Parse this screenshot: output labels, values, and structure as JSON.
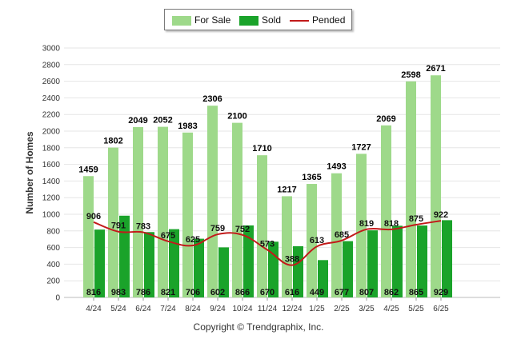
{
  "legend": {
    "for_sale": "For Sale",
    "sold": "Sold",
    "pended": "Pended"
  },
  "copyright": "Copyright © Trendgraphix, Inc.",
  "colors": {
    "for_sale": "#9ed98a",
    "sold": "#1aa32a",
    "pended": "#c21a1a",
    "grid": "#e6e6e6"
  },
  "chart_data": {
    "type": "bar",
    "title": "",
    "xlabel": "",
    "ylabel": "Number of Homes",
    "ylim": [
      0,
      3000
    ],
    "yticks": [
      0,
      200,
      400,
      600,
      800,
      1000,
      1200,
      1400,
      1600,
      1800,
      2000,
      2200,
      2400,
      2600,
      2800,
      3000
    ],
    "categories": [
      "4/24",
      "5/24",
      "6/24",
      "7/24",
      "8/24",
      "9/24",
      "10/24",
      "11/24",
      "12/24",
      "1/25",
      "2/25",
      "3/25",
      "4/25",
      "5/25",
      "6/25"
    ],
    "series": [
      {
        "name": "For Sale",
        "type": "bar",
        "values": [
          1459,
          1802,
          2049,
          2052,
          1983,
          2306,
          2100,
          1710,
          1217,
          1365,
          1493,
          1727,
          2069,
          2598,
          2671
        ]
      },
      {
        "name": "Sold",
        "type": "bar",
        "values": [
          816,
          983,
          786,
          821,
          706,
          602,
          866,
          670,
          616,
          449,
          677,
          807,
          862,
          865,
          929
        ]
      },
      {
        "name": "Pended",
        "type": "line",
        "values": [
          906,
          791,
          783,
          675,
          625,
          759,
          752,
          573,
          388,
          613,
          685,
          819,
          818,
          875,
          922
        ]
      }
    ],
    "grid": true,
    "legend_position": "top"
  }
}
